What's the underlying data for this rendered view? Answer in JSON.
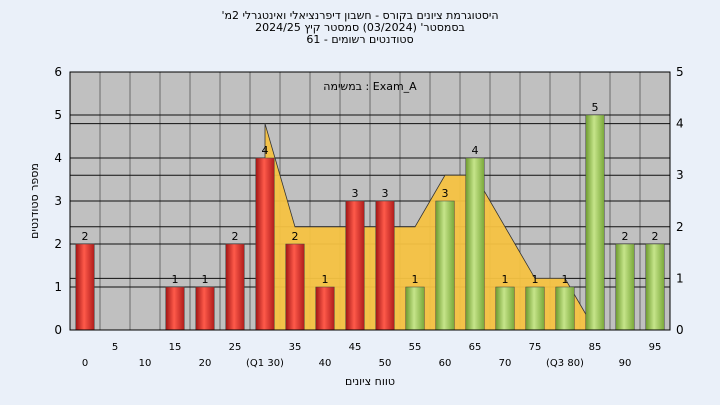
{
  "chart_data": {
    "type": "bar",
    "title_lines": [
      "'היסטוגרמת ציונים בקורס - חשבון דיפרנציאלי ואינטגרלי 2מ",
      "בסמסטר'  (03/2024)  סמסטר קיץ  2024/25",
      "סטודנטים רשומים - 61"
    ],
    "annotation": "במשימה : Exam_A",
    "xlabel": "טווח ציונים",
    "ylabel": "מספר סטודנטים",
    "ylim": [
      0,
      6
    ],
    "y2lim": [
      0,
      5
    ],
    "yticks": [
      0,
      1,
      2,
      3,
      4,
      5,
      6
    ],
    "y2ticks": [
      0,
      1,
      2,
      3,
      4,
      5
    ],
    "categories": [
      "0",
      "5",
      "10",
      "15",
      "20",
      "25",
      "30",
      "35",
      "40",
      "45",
      "50",
      "55",
      "60",
      "65",
      "70",
      "75",
      "80",
      "85",
      "90",
      "95"
    ],
    "x_tick_labels": [
      "0",
      "5",
      "10",
      "15",
      "20",
      "25",
      "(Q1 30)",
      "35",
      "40",
      "45",
      "50",
      "55",
      "60",
      "65",
      "70",
      "75",
      "(Q3 80)",
      "85",
      "90",
      "95"
    ],
    "values": [
      2,
      0,
      0,
      1,
      1,
      2,
      4,
      2,
      1,
      3,
      3,
      1,
      3,
      4,
      1,
      1,
      1,
      5,
      2,
      2
    ],
    "bar_colors": [
      "red",
      "red",
      "red",
      "red",
      "red",
      "red",
      "red",
      "red",
      "red",
      "red",
      "red",
      "green",
      "green",
      "green",
      "green",
      "green",
      "green",
      "green",
      "green",
      "green"
    ],
    "overlay_area_y2": [
      null,
      null,
      null,
      null,
      null,
      null,
      4,
      2,
      2,
      2,
      2,
      2,
      3,
      3,
      2,
      1,
      1,
      0,
      null,
      null
    ],
    "grid": true,
    "colors": {
      "background": "#eaf0f9",
      "plot_bg": "#c0c0c0",
      "red_bar": "#d42a2a",
      "green_bar": "#9ac254",
      "area": "#f5c242",
      "grid": "#000000"
    }
  }
}
